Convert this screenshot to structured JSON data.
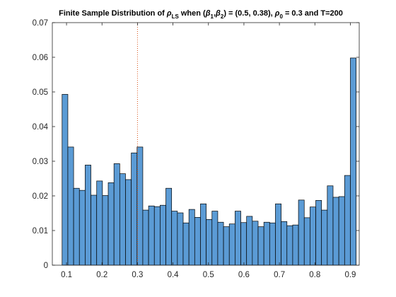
{
  "chart_data": {
    "type": "bar",
    "title": {
      "prefix": "Finite Sample Distribution of ",
      "rho": "ρ",
      "rho_sub": "LS",
      "when": " when (",
      "beta": "β",
      "sub1": "1",
      "comma": ",",
      "sub2": "2",
      "vals": ") = (0.5, 0.38),  ",
      "rho0_sub": "0",
      "tail": " = 0.3 and T=200"
    },
    "xlabel": "",
    "ylabel": "",
    "xlim": [
      0.06,
      0.925
    ],
    "ylim": [
      0,
      0.07
    ],
    "xticks": [
      "0.1",
      "0.2",
      "0.3",
      "0.4",
      "0.5",
      "0.6",
      "0.7",
      "0.8",
      "0.9"
    ],
    "yticks": [
      "0",
      "0.01",
      "0.02",
      "0.03",
      "0.04",
      "0.05",
      "0.06",
      "0.07"
    ],
    "bin_start": 0.0875,
    "bin_width": 0.01625,
    "values": [
      0.0493,
      0.0341,
      0.0222,
      0.0216,
      0.0289,
      0.0202,
      0.0243,
      0.0201,
      0.0238,
      0.0293,
      0.0264,
      0.0247,
      0.0324,
      0.0341,
      0.0159,
      0.0171,
      0.0169,
      0.0173,
      0.0222,
      0.0156,
      0.0151,
      0.0122,
      0.0161,
      0.0138,
      0.0177,
      0.0132,
      0.0156,
      0.0124,
      0.0111,
      0.0119,
      0.0156,
      0.0123,
      0.0141,
      0.0127,
      0.0111,
      0.0124,
      0.0122,
      0.0177,
      0.0126,
      0.0114,
      0.0116,
      0.0188,
      0.0137,
      0.0168,
      0.0187,
      0.0159,
      0.0229,
      0.0196,
      0.0198,
      0.0259,
      0.0598
    ],
    "reference_line_x": 0.3,
    "bar_color": "#5b9bd5",
    "bar_edge_color": "#000000",
    "reference_line_color": "#d95319",
    "grid": false
  }
}
